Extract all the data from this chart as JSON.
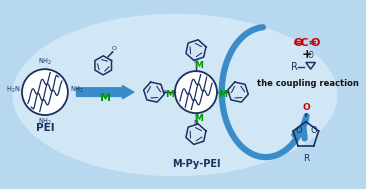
{
  "bg_outer": "#b8d8f0",
  "bg_inner": "#daeef8",
  "bg_white": "#e8f5fc",
  "border_color": "#90b8d8",
  "dark_blue": "#1a3060",
  "arrow_blue": "#3a8cc8",
  "green": "#009900",
  "red": "#cc0000",
  "black": "#111111",
  "pei_label": "PEI",
  "catalyst_label": "M-Py-PEI",
  "m_label": "M",
  "coupling_label": "the coupling reaction",
  "figw": 3.66,
  "figh": 1.89,
  "dpi": 100
}
